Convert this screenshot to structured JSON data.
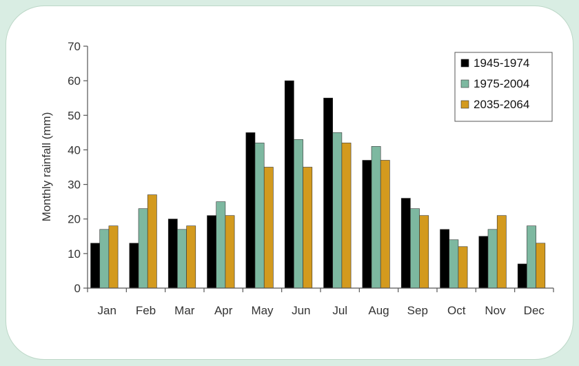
{
  "chart_data": {
    "type": "bar",
    "ylabel": "Monthly rainfall (mm)",
    "ylim": [
      0,
      70
    ],
    "yticks": [
      "0",
      "10",
      "20",
      "30",
      "40",
      "50",
      "60",
      "70"
    ],
    "categories": [
      "Jan",
      "Feb",
      "Mar",
      "Apr",
      "May",
      "Jun",
      "Jul",
      "Aug",
      "Sep",
      "Oct",
      "Nov",
      "Dec"
    ],
    "series": [
      {
        "name": "1945-1974",
        "color": "#000000",
        "values": [
          13,
          13,
          20,
          21,
          45,
          60,
          55,
          37,
          26,
          17,
          15,
          7
        ]
      },
      {
        "name": "1975-2004",
        "color": "#7db8a0",
        "values": [
          17,
          23,
          17,
          25,
          42,
          43,
          45,
          41,
          23,
          14,
          17,
          18
        ]
      },
      {
        "name": "2035-2064",
        "color": "#d39a1e",
        "values": [
          18,
          27,
          18,
          21,
          35,
          35,
          42,
          37,
          21,
          12,
          21,
          13
        ]
      }
    ],
    "grid": false,
    "legend_position": "top-right"
  }
}
